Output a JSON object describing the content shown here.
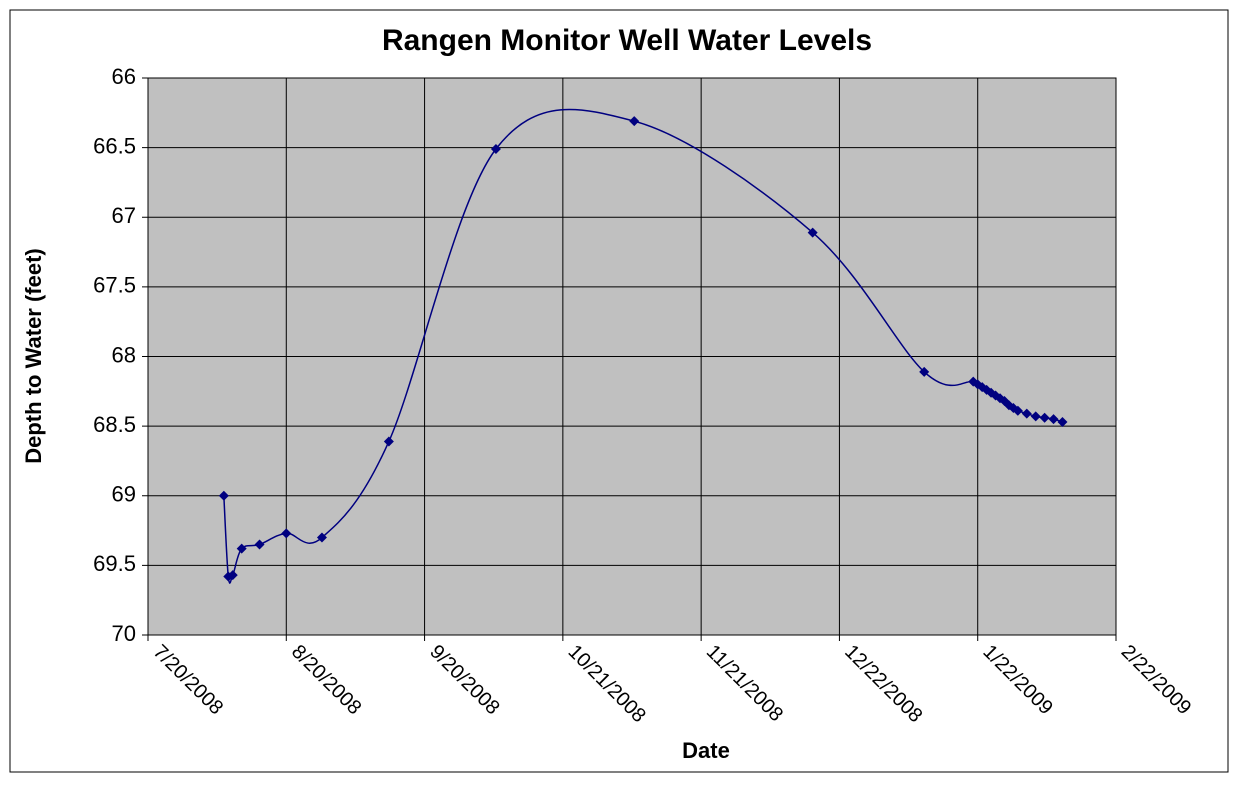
{
  "chart_data": {
    "type": "line",
    "title": "Rangen Monitor Well Water Levels",
    "x_label": "Date",
    "y_label": "Depth to Water (feet)",
    "x": [
      "2008-08-06",
      "2008-08-07",
      "2008-08-08",
      "2008-08-10",
      "2008-08-14",
      "2008-08-20",
      "2008-08-28",
      "2008-09-12",
      "2008-10-06",
      "2008-11-06",
      "2008-12-16",
      "2009-01-10",
      "2009-01-21",
      "2009-01-22",
      "2009-01-23",
      "2009-01-24",
      "2009-01-25",
      "2009-01-26",
      "2009-01-27",
      "2009-01-28",
      "2009-01-29",
      "2009-01-30",
      "2009-01-31",
      "2009-02-02",
      "2009-02-04",
      "2009-02-06",
      "2009-02-08",
      "2009-02-10"
    ],
    "series": [
      {
        "color": "#000080",
        "values": [
          69.0,
          69.58,
          69.57,
          69.38,
          69.35,
          69.27,
          69.3,
          68.61,
          66.51,
          66.31,
          67.11,
          68.11,
          68.18,
          68.2,
          68.22,
          68.24,
          68.26,
          68.28,
          68.3,
          68.32,
          68.35,
          68.37,
          68.39,
          68.41,
          68.43,
          68.44,
          68.45,
          68.47
        ]
      }
    ],
    "xlim": [
      "2008-07-20",
      "2009-02-22"
    ],
    "xticks": [
      {
        "value": "2008-07-20",
        "label": "7/20/2008"
      },
      {
        "value": "2008-08-20",
        "label": "8/20/2008"
      },
      {
        "value": "2008-09-20",
        "label": "9/20/2008"
      },
      {
        "value": "2008-10-21",
        "label": "10/21/2008"
      },
      {
        "value": "2008-11-21",
        "label": "11/21/2008"
      },
      {
        "value": "2008-12-22",
        "label": "12/22/2008"
      },
      {
        "value": "2009-01-22",
        "label": "1/22/2009"
      },
      {
        "value": "2009-02-22",
        "label": "2/22/2009"
      }
    ],
    "ylim": [
      66,
      70
    ],
    "y_inverted": true,
    "yticks": [
      66,
      66.5,
      67,
      67.5,
      68,
      68.5,
      69,
      69.5,
      70
    ],
    "grid": true,
    "smooth": true
  }
}
